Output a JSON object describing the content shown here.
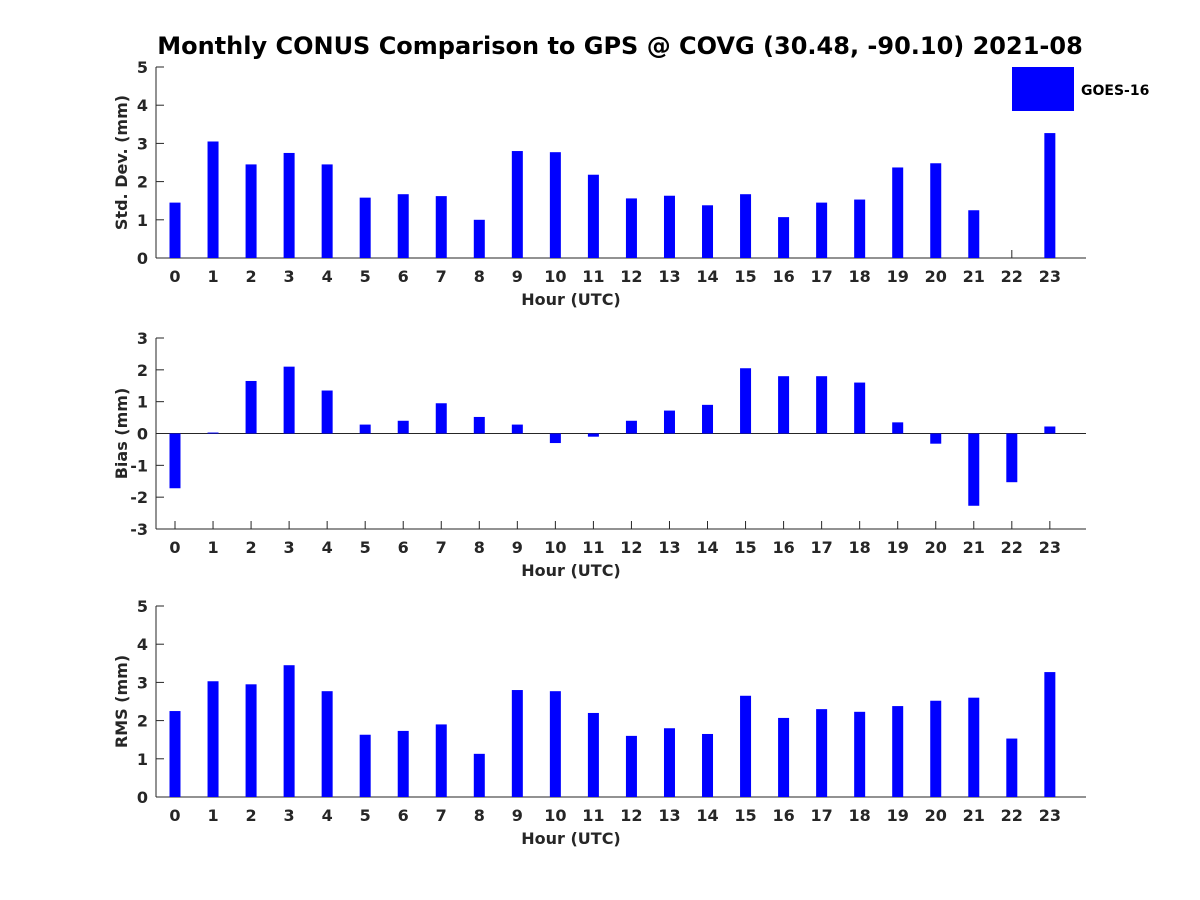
{
  "title": "Monthly CONUS Comparison to GPS @ COVG (30.48, -90.10) 2021-08",
  "legend": {
    "label": "GOES-16",
    "color": "#0000ff"
  },
  "chart_data": [
    {
      "type": "bar",
      "title": "Monthly CONUS Comparison to GPS @ COVG (30.48, -90.10) 2021-08",
      "xlabel": "Hour (UTC)",
      "ylabel": "Std. Dev. (mm)",
      "categories": [
        "0",
        "1",
        "2",
        "3",
        "4",
        "5",
        "6",
        "7",
        "8",
        "9",
        "10",
        "11",
        "12",
        "13",
        "14",
        "15",
        "16",
        "17",
        "18",
        "19",
        "20",
        "21",
        "22",
        "23"
      ],
      "series": [
        {
          "name": "GOES-16",
          "color": "#0000ff",
          "values": [
            1.45,
            3.05,
            2.45,
            2.75,
            2.45,
            1.58,
            1.67,
            1.62,
            1.0,
            2.8,
            2.77,
            2.18,
            1.56,
            1.63,
            1.38,
            1.67,
            1.07,
            1.45,
            1.53,
            2.37,
            2.48,
            1.25,
            null,
            3.27
          ]
        }
      ],
      "ylim": [
        0,
        5
      ],
      "yticks": [
        0,
        1,
        2,
        3,
        4,
        5
      ],
      "legend": "top-right"
    },
    {
      "type": "bar",
      "xlabel": "Hour (UTC)",
      "ylabel": "Bias (mm)",
      "categories": [
        "0",
        "1",
        "2",
        "3",
        "4",
        "5",
        "6",
        "7",
        "8",
        "9",
        "10",
        "11",
        "12",
        "13",
        "14",
        "15",
        "16",
        "17",
        "18",
        "19",
        "20",
        "21",
        "22",
        "23"
      ],
      "series": [
        {
          "name": "GOES-16",
          "color": "#0000ff",
          "values": [
            -1.72,
            0.03,
            1.65,
            2.1,
            1.35,
            0.28,
            0.4,
            0.95,
            0.52,
            0.28,
            -0.3,
            -0.1,
            0.4,
            0.72,
            0.9,
            2.05,
            1.8,
            1.8,
            1.6,
            0.35,
            -0.32,
            -2.27,
            -1.53,
            0.22
          ]
        }
      ],
      "ylim": [
        -3,
        3
      ],
      "yticks": [
        -3,
        -2,
        -1,
        0,
        1,
        2,
        3
      ]
    },
    {
      "type": "bar",
      "xlabel": "Hour (UTC)",
      "ylabel": "RMS (mm)",
      "categories": [
        "0",
        "1",
        "2",
        "3",
        "4",
        "5",
        "6",
        "7",
        "8",
        "9",
        "10",
        "11",
        "12",
        "13",
        "14",
        "15",
        "16",
        "17",
        "18",
        "19",
        "20",
        "21",
        "22",
        "23"
      ],
      "series": [
        {
          "name": "GOES-16",
          "color": "#0000ff",
          "values": [
            2.25,
            3.03,
            2.95,
            3.45,
            2.77,
            1.63,
            1.73,
            1.9,
            1.13,
            2.8,
            2.77,
            2.2,
            1.6,
            1.8,
            1.65,
            2.65,
            2.07,
            2.3,
            2.23,
            2.38,
            2.52,
            2.6,
            1.53,
            3.27
          ]
        }
      ],
      "ylim": [
        0,
        5
      ],
      "yticks": [
        0,
        1,
        2,
        3,
        4,
        5
      ]
    }
  ]
}
